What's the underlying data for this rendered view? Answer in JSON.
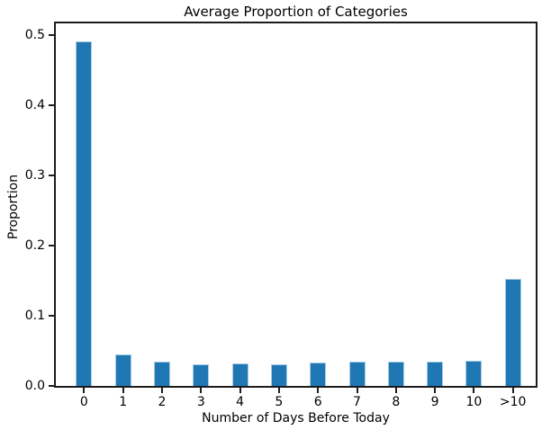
{
  "chart_data": {
    "type": "bar",
    "title": "Average Proportion of Categories",
    "xlabel": "Number of Days Before Today",
    "ylabel": "Proportion",
    "categories": [
      "0",
      "1",
      "2",
      "3",
      "4",
      "5",
      "6",
      "7",
      "8",
      "9",
      "10",
      ">10"
    ],
    "values": [
      0.49,
      0.045,
      0.034,
      0.031,
      0.032,
      0.031,
      0.033,
      0.034,
      0.034,
      0.035,
      0.036,
      0.153
    ],
    "yticks": [
      0.0,
      0.1,
      0.2,
      0.3,
      0.4,
      0.5
    ],
    "ytick_labels": [
      "0.0",
      "0.1",
      "0.2",
      "0.3",
      "0.4",
      "0.5"
    ],
    "ylim": [
      0,
      0.516
    ],
    "grid": false,
    "legend_position": "none",
    "bar_color": "#1f77b4",
    "bar_edge_color": "#a6cbe3",
    "spine_color": "#1c1c1c",
    "background_color": "#ffffff"
  }
}
